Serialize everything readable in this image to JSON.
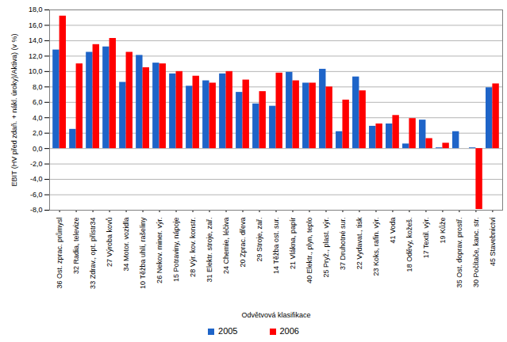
{
  "chart_data": {
    "type": "bar",
    "x_label": "Odvětvová klasifikace",
    "y_label": "EBIT (HV před zdaň. + nákl. úroky)/Aktiva) (v %)",
    "categories": [
      "36 Ost. zprac. průmysl",
      "32 Radia, televize",
      "33 Zdrav., opt. přístr34",
      "27 Výroba kovů",
      "34 Motor. vozidla",
      "10 Těžba uhlí, rašeliny",
      "26 Nekov. miner. výr.",
      "15 Potraviny, nápoje",
      "28 Výr. kov. konstr.",
      "31 Elektr. stroje, zař.",
      "24 Chemie, léčiva",
      "20 Zprac. dřeva",
      "29 Stroje, zař.",
      "14 Těžba ost. sur.",
      "21 Vlákna, papír",
      "40 Elektr., plyn, teplo",
      "25 Pryž., plast. výr.",
      "37 Druhotné sur.",
      "22 Vydavat., tisk",
      "23 Koks, rafin. výr.",
      "41 Voda",
      "18 Oděvy, kožeš.",
      "17 Textil. výr.",
      "19 Kůže",
      "35 Ost. doprav. prostř.",
      "30 Počítače, kanc. str.",
      "45 Stavebnictví"
    ],
    "series": [
      {
        "name": "2005",
        "color": "#1e64c8",
        "values": [
          12.8,
          2.5,
          12.5,
          13.2,
          8.6,
          12.1,
          11.1,
          9.7,
          8.1,
          8.8,
          9.7,
          7.3,
          5.8,
          5.5,
          9.9,
          8.5,
          10.3,
          2.2,
          9.3,
          2.9,
          3.2,
          0.6,
          3.7,
          0.1,
          2.2,
          0.1,
          7.9
        ]
      },
      {
        "name": "2006",
        "color": "#ff0000",
        "values": [
          17.2,
          11.0,
          13.5,
          14.3,
          12.5,
          10.5,
          11.0,
          10.0,
          9.4,
          8.5,
          10.0,
          8.9,
          7.4,
          9.8,
          8.8,
          8.5,
          8.0,
          6.3,
          7.5,
          3.2,
          4.3,
          3.9,
          1.3,
          0.7,
          0.0,
          -7.9,
          8.4
        ]
      }
    ],
    "ylim": [
      -8,
      18
    ],
    "yticks": [
      {
        "value": -8,
        "label": "-8,0"
      },
      {
        "value": -6,
        "label": "-6,0"
      },
      {
        "value": -4,
        "label": "-4,0"
      },
      {
        "value": -2,
        "label": "-2,0"
      },
      {
        "value": 0,
        "label": "0,0"
      },
      {
        "value": 2,
        "label": "2,0"
      },
      {
        "value": 4,
        "label": "4,0"
      },
      {
        "value": 6,
        "label": "6,0"
      },
      {
        "value": 8,
        "label": "8,0"
      },
      {
        "value": 10,
        "label": "10,0"
      },
      {
        "value": 12,
        "label": "12,0"
      },
      {
        "value": 14,
        "label": "14,0"
      },
      {
        "value": 16,
        "label": "16,0"
      },
      {
        "value": 18,
        "label": "18,0"
      }
    ],
    "grid": true,
    "legend": "bottom"
  }
}
